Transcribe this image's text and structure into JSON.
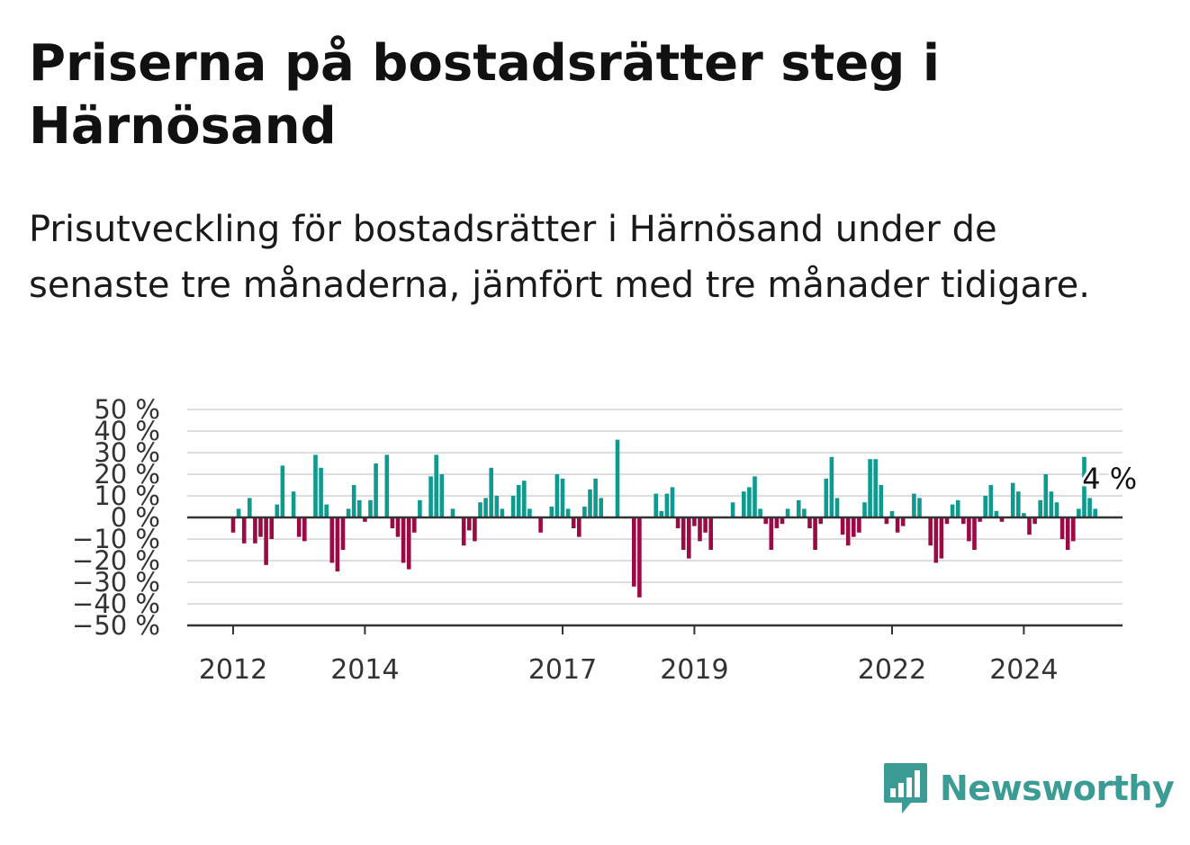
{
  "title": "Priserna på bostadsrätter steg i Härnösand",
  "subtitle": "Prisutveckling för bostadsrätter i Härnösand under de senaste tre månaderna, jämfört med tre månader tidigare.",
  "brand": {
    "name": "Newsworthy",
    "icon": "newsworthy-chart-icon",
    "color": "#3a9c94"
  },
  "colors": {
    "positive": "#0f9a8f",
    "negative": "#9b0a45",
    "grid": "#dddddd",
    "axis": "#333333"
  },
  "chart_data": {
    "type": "bar",
    "ylabel": "",
    "xlabel": "",
    "ylim": [
      -50,
      50
    ],
    "yticks": [
      50,
      40,
      30,
      20,
      10,
      0,
      -10,
      -20,
      -30,
      -40,
      -50
    ],
    "ytick_labels": [
      "50 %",
      "40 %",
      "30 %",
      "20 %",
      "10 %",
      "0 %",
      "−10 %",
      "−20 %",
      "−30 %",
      "−40 %",
      "−50 %"
    ],
    "grid": true,
    "xticks": [
      "2012",
      "2014",
      "2017",
      "2019",
      "2022",
      "2024"
    ],
    "xticks_index": [
      0,
      24,
      60,
      84,
      120,
      144
    ],
    "x_start": "2012-01",
    "values": [
      -7,
      4,
      -12,
      9,
      -12,
      -9,
      -22,
      -10,
      6,
      24,
      0,
      12,
      -9,
      -11,
      0,
      29,
      23,
      6,
      -21,
      -25,
      -15,
      4,
      15,
      8,
      -2,
      8,
      25,
      0,
      29,
      -5,
      -9,
      -21,
      -24,
      -7,
      8,
      0,
      19,
      29,
      20,
      0,
      4,
      0,
      -13,
      -6,
      -11,
      7,
      9,
      23,
      10,
      4,
      0,
      10,
      15,
      17,
      4,
      0,
      -7,
      0,
      5,
      20,
      18,
      4,
      -5,
      -9,
      5,
      13,
      18,
      9,
      0,
      0,
      36,
      0,
      0,
      -32,
      -37,
      0,
      0,
      11,
      3,
      11,
      14,
      -5,
      -15,
      -19,
      -4,
      -11,
      -7,
      -15,
      0,
      0,
      0,
      7,
      0,
      12,
      14,
      19,
      4,
      -3,
      -15,
      -5,
      -3,
      4,
      0,
      8,
      4,
      -5,
      -15,
      -3,
      18,
      28,
      9,
      -8,
      -13,
      -9,
      -7,
      7,
      27,
      27,
      15,
      -3,
      3,
      -7,
      -4,
      0,
      11,
      9,
      0,
      -13,
      -21,
      -19,
      -3,
      6,
      8,
      -3,
      -11,
      -15,
      -2,
      10,
      15,
      3,
      -2,
      0,
      16,
      12,
      2,
      -8,
      -3,
      8,
      20,
      12,
      7,
      -10,
      -15,
      -11,
      4,
      28,
      9,
      4
    ],
    "last_value_label": "4 %"
  }
}
